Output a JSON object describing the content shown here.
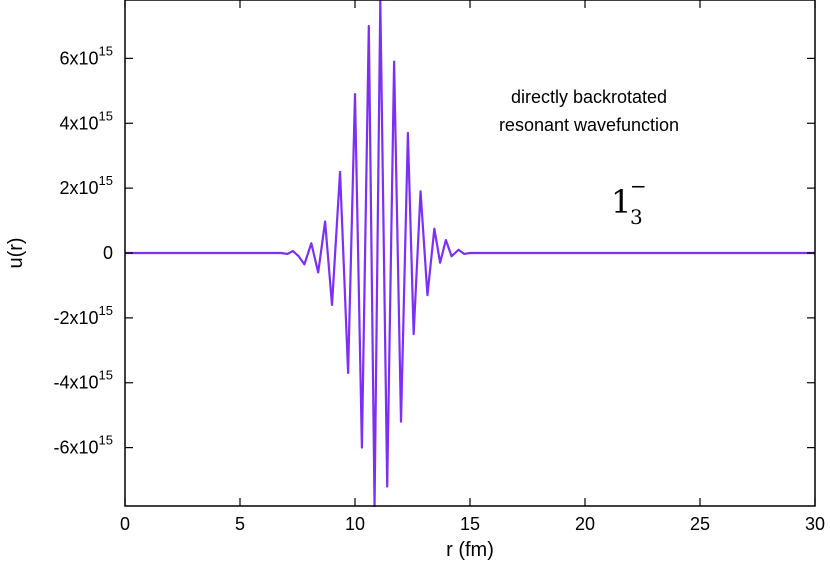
{
  "chart_data": {
    "type": "line",
    "xlabel": "r (fm)",
    "ylabel": "u(r)",
    "xlim": [
      0,
      30
    ],
    "ylim": [
      -7800000000000000.0,
      7800000000000000.0
    ],
    "grid": false,
    "x_ticks": [
      {
        "value": 0,
        "label": "0"
      },
      {
        "value": 5,
        "label": "5"
      },
      {
        "value": 10,
        "label": "10"
      },
      {
        "value": 15,
        "label": "15"
      },
      {
        "value": 20,
        "label": "20"
      },
      {
        "value": 25,
        "label": "25"
      },
      {
        "value": 30,
        "label": "30"
      }
    ],
    "y_ticks": [
      {
        "value": 6000000000000000.0,
        "mant": "6x10",
        "exp": "15"
      },
      {
        "value": 4000000000000000.0,
        "mant": "4x10",
        "exp": "15"
      },
      {
        "value": 2000000000000000.0,
        "mant": "2x10",
        "exp": "15"
      },
      {
        "value": 0,
        "mant": "0",
        "exp": ""
      },
      {
        "value": -2000000000000000.0,
        "mant": "-2x10",
        "exp": "15"
      },
      {
        "value": -4000000000000000.0,
        "mant": "-4x10",
        "exp": "15"
      },
      {
        "value": -6000000000000000.0,
        "mant": "-6x10",
        "exp": "15"
      }
    ],
    "annotations": {
      "line1": "directly backrotated",
      "line2": "resonant  wavefunction",
      "state_main": "1",
      "state_sub": "3",
      "state_sup": "−"
    },
    "series": [
      {
        "color": "#7b2ff7",
        "points": [
          [
            0,
            0
          ],
          [
            6.8,
            0
          ],
          [
            7.05,
            -30000000000000.0
          ],
          [
            7.3,
            60000000000000.0
          ],
          [
            7.55,
            -100000000000000.0
          ],
          [
            7.8,
            -350000000000000.0
          ],
          [
            8.1,
            300000000000000.0
          ],
          [
            8.4,
            -600000000000000.0
          ],
          [
            8.7,
            970000000000000.0
          ],
          [
            9.0,
            -1600000000000000.0
          ],
          [
            9.35,
            2500000000000000.0
          ],
          [
            9.7,
            -3700000000000000.0
          ],
          [
            10.0,
            4900000000000000.0
          ],
          [
            10.3,
            -6000000000000000.0
          ],
          [
            10.6,
            7000000000000000.0
          ],
          [
            10.85,
            -7800000000000000.0
          ],
          [
            11.1,
            7800000000000000.0
          ],
          [
            11.4,
            -7200000000000000.0
          ],
          [
            11.7,
            5900000000000000.0
          ],
          [
            12.0,
            -5200000000000000.0
          ],
          [
            12.3,
            3700000000000000.0
          ],
          [
            12.55,
            -2500000000000000.0
          ],
          [
            12.85,
            1900000000000000.0
          ],
          [
            13.15,
            -1300000000000000.0
          ],
          [
            13.45,
            750000000000000.0
          ],
          [
            13.7,
            -300000000000000.0
          ],
          [
            13.95,
            400000000000000.0
          ],
          [
            14.2,
            -100000000000000.0
          ],
          [
            14.5,
            100000000000000.0
          ],
          [
            14.75,
            -30000000000000.0
          ],
          [
            15.0,
            0
          ],
          [
            30,
            0
          ]
        ]
      }
    ]
  }
}
